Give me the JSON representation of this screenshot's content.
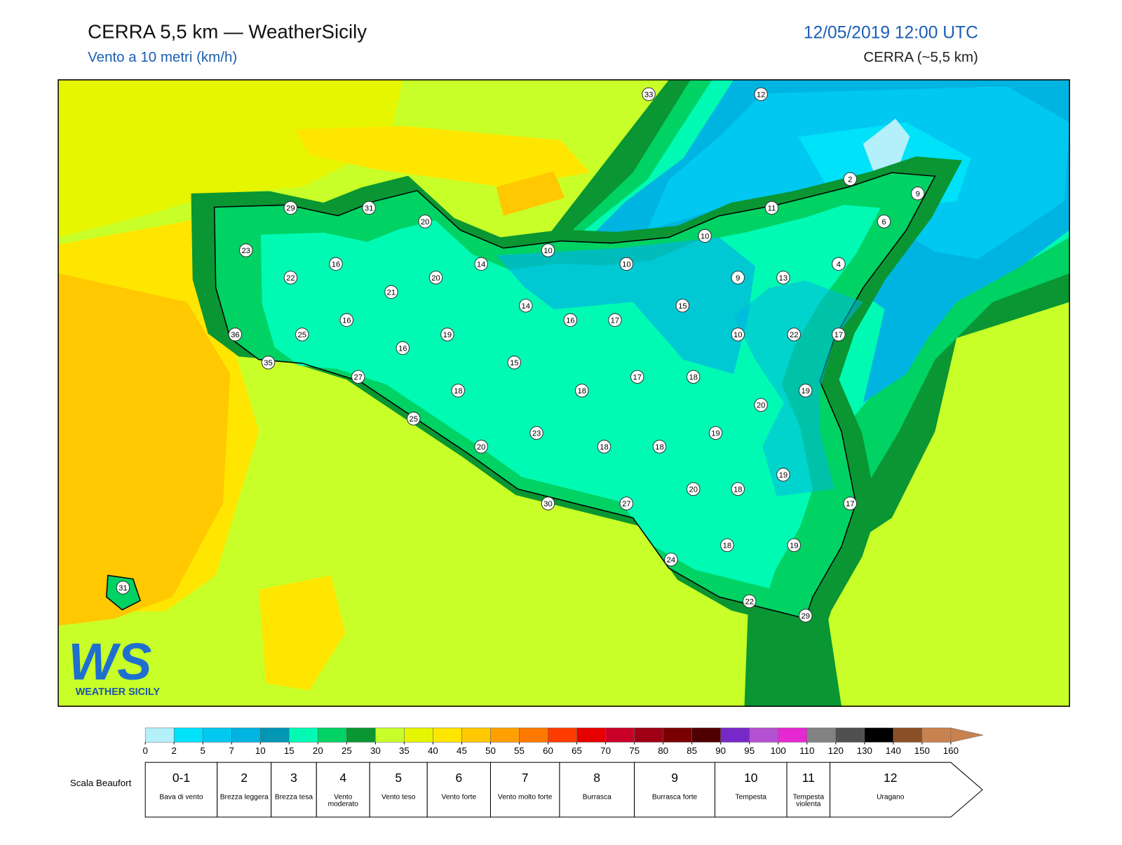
{
  "header": {
    "title": "CERRA 5,5 km — WeatherSicily",
    "subtitle": "Vento a 10 metri (km/h)",
    "date": "12/05/2019 12:00 UTC",
    "model": "CERRA (~5,5 km)"
  },
  "stations": [
    33,
    12,
    2,
    9,
    29,
    31,
    20,
    11,
    6,
    10,
    23,
    10,
    14,
    16,
    10,
    4,
    22,
    20,
    9,
    13,
    21,
    14,
    15,
    16,
    16,
    17,
    36,
    25,
    19,
    10,
    22,
    17,
    16,
    15,
    35,
    27,
    17,
    18,
    18,
    18,
    19,
    20,
    25,
    19,
    23,
    20,
    18,
    18,
    19,
    20,
    18,
    17,
    30,
    27,
    24,
    18,
    19,
    22,
    29,
    31
  ],
  "colorbar": {
    "ticks": [
      0,
      2,
      5,
      7,
      10,
      15,
      20,
      25,
      30,
      35,
      40,
      45,
      50,
      55,
      60,
      65,
      70,
      75,
      80,
      85,
      90,
      95,
      100,
      110,
      120,
      130,
      140,
      150,
      160
    ],
    "colors": [
      "#b4f0fa",
      "#00e1fa",
      "#00c8f0",
      "#00b4e1",
      "#0096b4",
      "#00fab4",
      "#00d264",
      "#0a9632",
      "#c8ff28",
      "#e6f500",
      "#ffe600",
      "#ffc800",
      "#ffa000",
      "#ff7800",
      "#ff3c00",
      "#e60000",
      "#c80028",
      "#a00014",
      "#780000",
      "#500000",
      "#7828c8",
      "#b450d2",
      "#e628d2",
      "#828282",
      "#505050",
      "#000000",
      "#8c5028",
      "#c88250"
    ],
    "over_color": "#c88250"
  },
  "beaufort": {
    "title": "Scala Beaufort",
    "levels": [
      {
        "number": "0-1",
        "name": "Bava di vento"
      },
      {
        "number": "2",
        "name": "Brezza leggera"
      },
      {
        "number": "3",
        "name": "Brezza tesa"
      },
      {
        "number": "4",
        "name": "Vento moderato"
      },
      {
        "number": "5",
        "name": "Vento teso"
      },
      {
        "number": "6",
        "name": "Vento forte"
      },
      {
        "number": "7",
        "name": "Vento molto forte"
      },
      {
        "number": "8",
        "name": "Burrasca"
      },
      {
        "number": "9",
        "name": "Burrasca forte"
      },
      {
        "number": "10",
        "name": "Tempesta"
      },
      {
        "number": "11",
        "name": "Tempesta violenta"
      },
      {
        "number": "12",
        "name": "Uragano"
      }
    ]
  },
  "logo": {
    "mark": "WS",
    "name": "WEATHER SICILY"
  }
}
